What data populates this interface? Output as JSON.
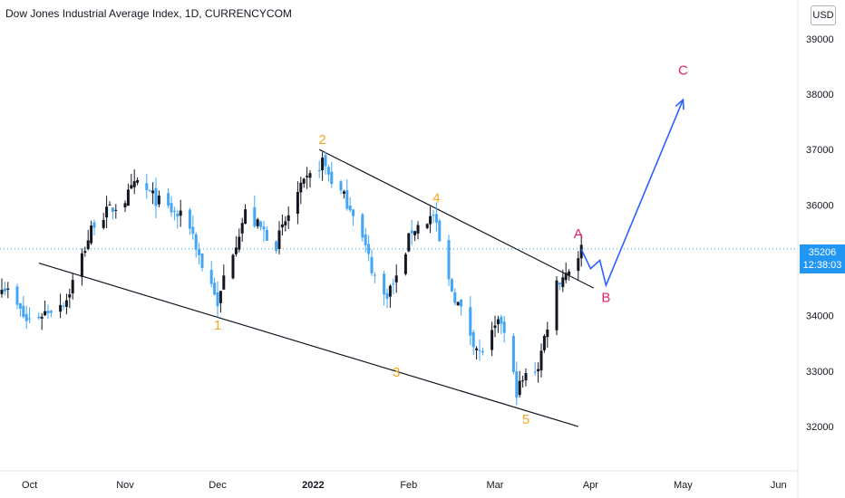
{
  "header": {
    "title": "Dow Jones Industrial Average Index, 1D, CURRENCYCOM",
    "currency_button": "USD"
  },
  "price_tag": {
    "price": "35206",
    "countdown": "12:38:03"
  },
  "colors": {
    "up": "#131722",
    "down": "#42a5f5",
    "projection": "#2962ff",
    "wave_label": "#f5a623",
    "abc_label": "#e91e63",
    "price_line": "#2196f3",
    "trendline": "#131722"
  },
  "chart_data": {
    "type": "candlestick",
    "series_name": "Dow Jones Industrial Average Index",
    "x_axis_labels": [
      "Oct",
      "Nov",
      "Dec",
      "2022",
      "Feb",
      "Mar",
      "Apr",
      "May",
      "Jun"
    ],
    "y_axis_labels": [
      "32000",
      "33000",
      "34000",
      "35000",
      "36000",
      "37000",
      "38000",
      "39000"
    ],
    "ylim": [
      31200,
      39700
    ],
    "last_price": 35206,
    "waypoints": [
      {
        "date": "2021-09-22",
        "price": 34600
      },
      {
        "date": "2021-09-30",
        "price": 33900
      },
      {
        "date": "2021-10-04",
        "price": 34000
      },
      {
        "date": "2021-10-13",
        "price": 34300
      },
      {
        "date": "2021-10-22",
        "price": 35700
      },
      {
        "date": "2021-11-01",
        "price": 36100
      },
      {
        "date": "2021-11-05",
        "price": 36400
      },
      {
        "date": "2021-11-12",
        "price": 36050
      },
      {
        "date": "2021-11-22",
        "price": 35650
      },
      {
        "date": "2021-11-26",
        "price": 34900
      },
      {
        "date": "2021-11-30",
        "price": 34450
      },
      {
        "date": "2021-12-01",
        "price": 34100
      },
      {
        "date": "2021-12-03",
        "price": 34700
      },
      {
        "date": "2021-12-10",
        "price": 35850
      },
      {
        "date": "2021-12-20",
        "price": 35300
      },
      {
        "date": "2021-12-27",
        "price": 36200
      },
      {
        "date": "2022-01-04",
        "price": 36800
      },
      {
        "date": "2022-01-07",
        "price": 36450
      },
      {
        "date": "2022-01-14",
        "price": 35900
      },
      {
        "date": "2022-01-21",
        "price": 34700
      },
      {
        "date": "2022-01-24",
        "price": 34350
      },
      {
        "date": "2022-01-28",
        "price": 34650
      },
      {
        "date": "2022-02-02",
        "price": 35550
      },
      {
        "date": "2022-02-09",
        "price": 35800
      },
      {
        "date": "2022-02-14",
        "price": 34600
      },
      {
        "date": "2022-02-24",
        "price": 33300
      },
      {
        "date": "2022-03-03",
        "price": 33900
      },
      {
        "date": "2022-03-08",
        "price": 32650
      },
      {
        "date": "2022-03-11",
        "price": 32900
      },
      {
        "date": "2022-03-15",
        "price": 33100
      },
      {
        "date": "2022-03-21",
        "price": 34600
      },
      {
        "date": "2022-03-25",
        "price": 34850
      },
      {
        "date": "2022-03-29",
        "price": 35206
      }
    ],
    "trendlines": [
      {
        "name": "upper",
        "from": {
          "date": "2022-01-03",
          "price": 37000
        },
        "to": {
          "date": "2022-04-02",
          "price": 34500
        }
      },
      {
        "name": "lower",
        "from": {
          "date": "2021-10-04",
          "price": 34950
        },
        "to": {
          "date": "2022-03-28",
          "price": 32000
        }
      }
    ],
    "projection": [
      {
        "date": "2022-03-29",
        "price": 35200
      },
      {
        "date": "2022-04-01",
        "price": 34850
      },
      {
        "date": "2022-04-04",
        "price": 35000
      },
      {
        "date": "2022-04-06",
        "price": 34550
      },
      {
        "date": "2022-05-01",
        "price": 37900
      }
    ],
    "wave_labels": [
      {
        "text": "1",
        "date": "2021-12-01",
        "price": 33750,
        "kind": "wave"
      },
      {
        "text": "2",
        "date": "2022-01-04",
        "price": 37100,
        "kind": "wave"
      },
      {
        "text": "3",
        "date": "2022-01-28",
        "price": 32900,
        "kind": "wave"
      },
      {
        "text": "4",
        "date": "2022-02-10",
        "price": 36050,
        "kind": "wave"
      },
      {
        "text": "5",
        "date": "2022-03-11",
        "price": 32050,
        "kind": "wave"
      },
      {
        "text": "A",
        "date": "2022-03-28",
        "price": 35400,
        "kind": "abc"
      },
      {
        "text": "B",
        "date": "2022-04-06",
        "price": 34250,
        "kind": "abc"
      },
      {
        "text": "C",
        "date": "2022-05-01",
        "price": 38350,
        "kind": "abc"
      }
    ]
  }
}
